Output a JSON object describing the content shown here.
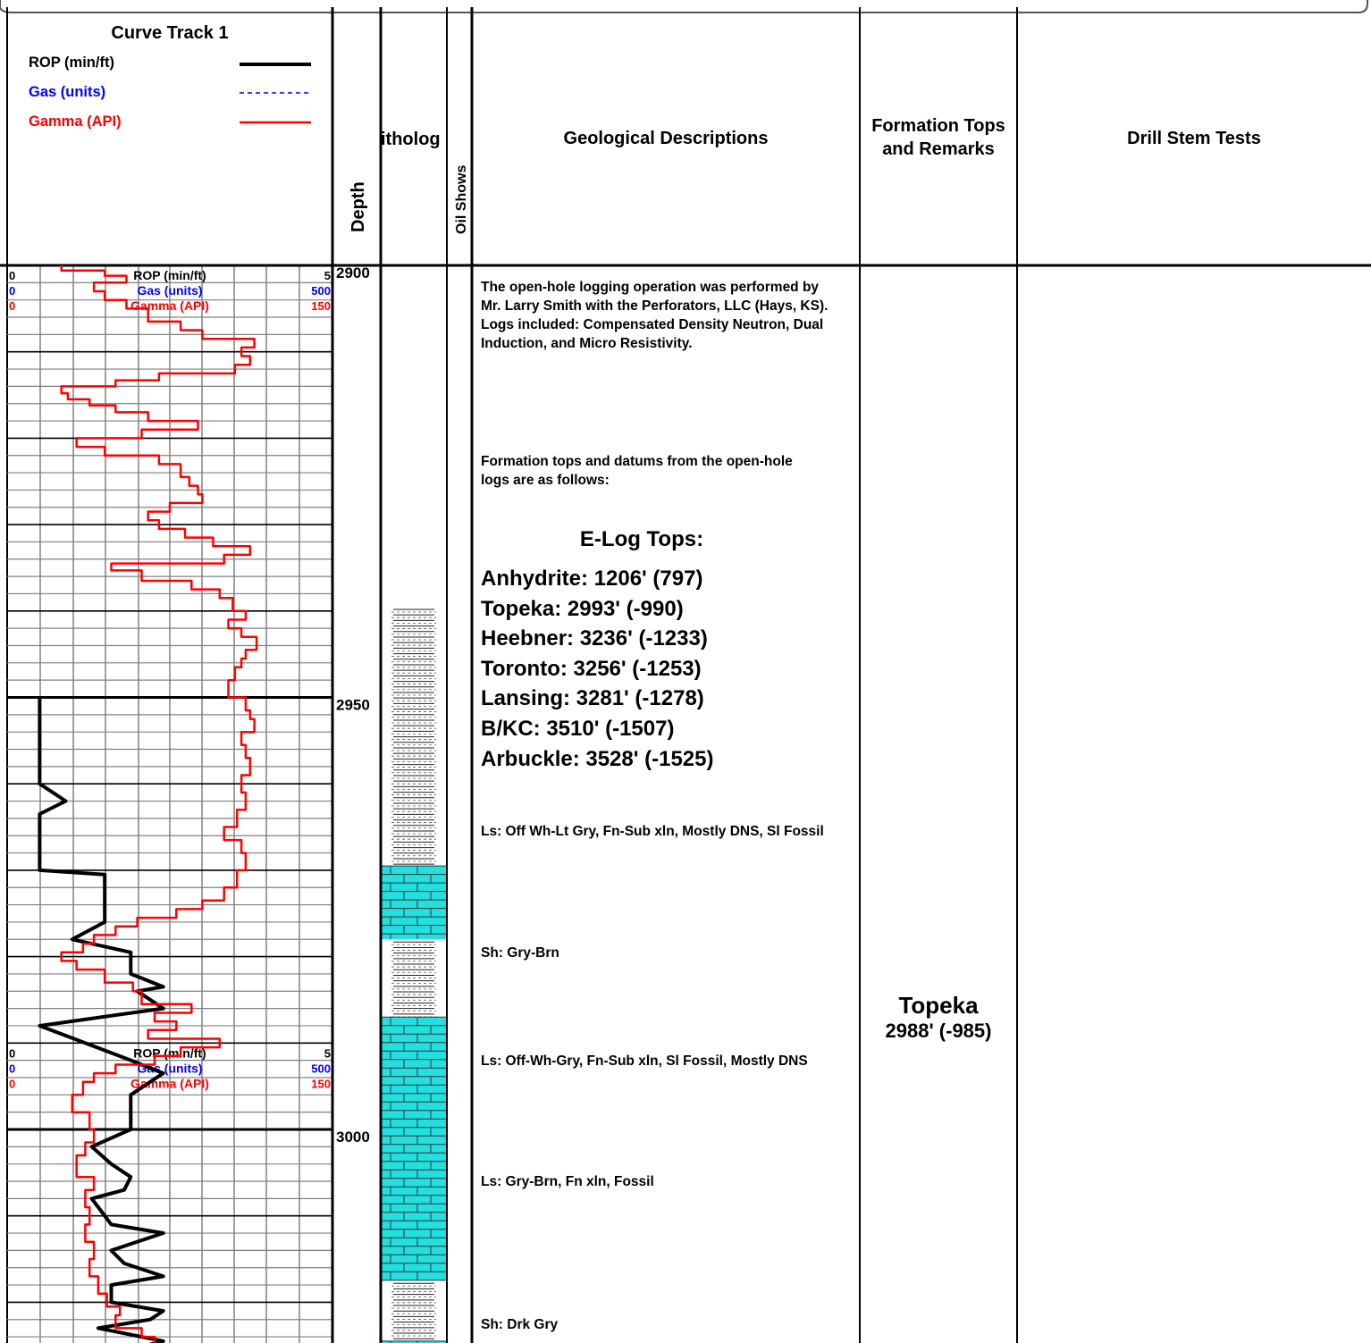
{
  "header": {
    "curve_track_title": "Curve Track 1",
    "legend": [
      {
        "label": "ROP (min/ft)",
        "color": "#000000",
        "style": "solid-thick"
      },
      {
        "label": "Gas (units)",
        "color": "#0000ff",
        "style": "dashed"
      },
      {
        "label": "Gamma (API)",
        "color": "#ff0000",
        "style": "solid"
      }
    ],
    "depth_label": "Depth",
    "lithology_label": "itholog",
    "oil_shows_label": "Oil Shows",
    "geo_desc_label": "Geological Descriptions",
    "formation_tops_label": "Formation Tops and Remarks",
    "drill_stem_label": "Drill Stem Tests"
  },
  "scales": [
    {
      "ROP": {
        "name": "ROP (min/ft)",
        "min": "0",
        "max": "5"
      },
      "Gas": {
        "name": "Gas (units)",
        "min": "0",
        "max": "500"
      },
      "Gamma": {
        "name": "Gamma (API)",
        "min": "0",
        "max": "150"
      }
    },
    {
      "ROP": {
        "name": "ROP (min/ft)",
        "min": "0",
        "max": "5"
      },
      "Gas": {
        "name": "Gas (units)",
        "min": "0",
        "max": "500"
      },
      "Gamma": {
        "name": "Gamma (API)",
        "min": "0",
        "max": "150"
      }
    }
  ],
  "depth_labels": [
    "2900",
    "2950",
    "3000"
  ],
  "descriptions": {
    "logging": "The open-hole logging operation was performed by Mr. Larry Smith with the Perforators, LLC (Hays, KS). Logs included: Compensated Density Neutron, Dual Induction, and Micro Resistivity.",
    "tops_intro": "Formation tops and datums from the open-hole logs are as follows:",
    "etops_title": "E-Log Tops:",
    "etops": [
      "Anhydrite: 1206' (797)",
      "Topeka: 2993' (-990)",
      "Heebner: 3236' (-1233)",
      "Toronto: 3256' (-1253)",
      "Lansing: 3281' (-1278)",
      "B/KC: 3510' (-1507)",
      "Arbuckle: 3528' (-1525)"
    ],
    "lith": [
      {
        "depth": 2965.5,
        "text": "Ls: Off Wh-Lt Gry, Fn-Sub xln, Mostly DNS, Sl Fossil"
      },
      {
        "depth": 2979.5,
        "text": "Sh: Gry-Brn"
      },
      {
        "depth": 2992.0,
        "text": "Ls: Off-Wh-Gry, Fn-Sub xln, Sl Fossil, Mostly DNS"
      },
      {
        "depth": 3006.0,
        "text": "Ls: Gry-Brn, Fn xln, Fossil"
      },
      {
        "depth": 3022.5,
        "text": "Sh: Drk Gry"
      }
    ]
  },
  "formation_tops": [
    {
      "depth": 2985.5,
      "name": "Topeka",
      "datum": "2988' (-985)"
    }
  ],
  "colors": {
    "limestone": "#22e0e0",
    "gamma": "#ff0000",
    "rop": "#000000",
    "gas": "#0000ff",
    "grid": "#808080"
  },
  "chart_data": {
    "type": "line",
    "title": "Curve Track 1",
    "ylabel": "Depth",
    "depth_range": [
      2900,
      3026
    ],
    "series": [
      {
        "name": "ROP (min/ft)",
        "scale": [
          0,
          5
        ],
        "points": [
          [
            2950,
            0.5
          ],
          [
            2960,
            0.5
          ],
          [
            2962,
            0.9
          ],
          [
            2963.5,
            0.5
          ],
          [
            2970,
            0.5
          ],
          [
            2970.5,
            1.5
          ],
          [
            2976,
            1.5
          ],
          [
            2978,
            1.0
          ],
          [
            2979.5,
            1.9
          ],
          [
            2980.5,
            1.9
          ],
          [
            2982,
            1.9
          ],
          [
            2983.5,
            2.4
          ],
          [
            2984,
            2.0
          ],
          [
            2986,
            2.4
          ],
          [
            2988,
            0.5
          ],
          [
            2992,
            1.9
          ],
          [
            2993.5,
            2.4
          ],
          [
            2996,
            1.9
          ],
          [
            3000,
            1.9
          ],
          [
            3002,
            1.3
          ],
          [
            3004,
            1.6
          ],
          [
            3005.5,
            1.9
          ],
          [
            3007,
            1.8
          ],
          [
            3008,
            1.3
          ],
          [
            3009,
            1.4
          ],
          [
            3011,
            1.6
          ],
          [
            3012,
            2.4
          ],
          [
            3014,
            1.6
          ],
          [
            3015.5,
            1.8
          ],
          [
            3017,
            2.4
          ],
          [
            3018,
            1.6
          ],
          [
            3020,
            1.6
          ],
          [
            3021,
            2.4
          ],
          [
            3022,
            2.2
          ],
          [
            3023,
            1.4
          ],
          [
            3024.5,
            2.4
          ],
          [
            3026,
            1.6
          ]
        ]
      },
      {
        "name": "Gamma (API)",
        "scale": [
          0,
          150
        ],
        "points": [
          [
            2900,
            25
          ],
          [
            2900.6,
            25
          ],
          [
            2900.6,
            45
          ],
          [
            2901.2,
            45
          ],
          [
            2901.2,
            55
          ],
          [
            2902.0,
            55
          ],
          [
            2902.0,
            40
          ],
          [
            2903.0,
            40
          ],
          [
            2903.0,
            45
          ],
          [
            2904.0,
            45
          ],
          [
            2904.0,
            55
          ],
          [
            2905.0,
            55
          ],
          [
            2905.0,
            65
          ],
          [
            2906.5,
            65
          ],
          [
            2906.5,
            80
          ],
          [
            2907.5,
            80
          ],
          [
            2907.5,
            90
          ],
          [
            2908.5,
            90
          ],
          [
            2908.5,
            114
          ],
          [
            2909.5,
            114
          ],
          [
            2909.5,
            108
          ],
          [
            2910.5,
            108
          ],
          [
            2910.5,
            112
          ],
          [
            2911.5,
            112
          ],
          [
            2911.5,
            105
          ],
          [
            2912.5,
            105
          ],
          [
            2912.5,
            70
          ],
          [
            2913.3,
            70
          ],
          [
            2913.3,
            50
          ],
          [
            2914.0,
            50
          ],
          [
            2914.0,
            25
          ],
          [
            2914.8,
            25
          ],
          [
            2914.8,
            28
          ],
          [
            2915.5,
            28
          ],
          [
            2915.5,
            38
          ],
          [
            2916.2,
            38
          ],
          [
            2916.2,
            50
          ],
          [
            2917.0,
            50
          ],
          [
            2917.0,
            65
          ],
          [
            2918.0,
            65
          ],
          [
            2918.0,
            88
          ],
          [
            2919.0,
            88
          ],
          [
            2919.0,
            62
          ],
          [
            2920.0,
            62
          ],
          [
            2920.0,
            32
          ],
          [
            2921.0,
            32
          ],
          [
            2921.0,
            45
          ],
          [
            2922.0,
            45
          ],
          [
            2922.0,
            70
          ],
          [
            2923.0,
            70
          ],
          [
            2923.0,
            80
          ],
          [
            2924.5,
            80
          ],
          [
            2924.5,
            84
          ],
          [
            2925.5,
            84
          ],
          [
            2925.5,
            88
          ],
          [
            2926.5,
            88
          ],
          [
            2926.5,
            90
          ],
          [
            2927.5,
            90
          ],
          [
            2927.5,
            75
          ],
          [
            2928.5,
            75
          ],
          [
            2928.5,
            65
          ],
          [
            2929.5,
            65
          ],
          [
            2929.5,
            70
          ],
          [
            2930.5,
            70
          ],
          [
            2930.5,
            82
          ],
          [
            2931.5,
            82
          ],
          [
            2931.5,
            95
          ],
          [
            2932.5,
            95
          ],
          [
            2932.5,
            112
          ],
          [
            2933.5,
            112
          ],
          [
            2933.5,
            100
          ],
          [
            2934.5,
            100
          ],
          [
            2934.5,
            48
          ],
          [
            2935.3,
            48
          ],
          [
            2935.3,
            62
          ],
          [
            2936.5,
            62
          ],
          [
            2936.5,
            85
          ],
          [
            2937.5,
            85
          ],
          [
            2937.5,
            98
          ],
          [
            2938.5,
            98
          ],
          [
            2938.5,
            104
          ],
          [
            2940.0,
            104
          ],
          [
            2940.0,
            110
          ],
          [
            2941.0,
            110
          ],
          [
            2941.0,
            102
          ],
          [
            2942.0,
            102
          ],
          [
            2942.0,
            108
          ],
          [
            2943.0,
            108
          ],
          [
            2943.0,
            115
          ],
          [
            2944.5,
            115
          ],
          [
            2944.5,
            110
          ],
          [
            2945.5,
            110
          ],
          [
            2945.5,
            108
          ],
          [
            2946.5,
            108
          ],
          [
            2946.5,
            105
          ],
          [
            2948.0,
            105
          ],
          [
            2948.0,
            102
          ],
          [
            2950.0,
            102
          ],
          [
            2950.0,
            110
          ],
          [
            2951.5,
            110
          ],
          [
            2951.5,
            112
          ],
          [
            2952.5,
            112
          ],
          [
            2952.5,
            114
          ],
          [
            2954.0,
            114
          ],
          [
            2954.0,
            108
          ],
          [
            2955.5,
            108
          ],
          [
            2955.5,
            110
          ],
          [
            2957.0,
            110
          ],
          [
            2957.0,
            112
          ],
          [
            2959.0,
            112
          ],
          [
            2959.0,
            108
          ],
          [
            2961.0,
            108
          ],
          [
            2961.0,
            110
          ],
          [
            2963.0,
            110
          ],
          [
            2963.0,
            106
          ],
          [
            2965.0,
            106
          ],
          [
            2965.0,
            100
          ],
          [
            2966.5,
            100
          ],
          [
            2966.5,
            108
          ],
          [
            2968.0,
            108
          ],
          [
            2968.0,
            110
          ],
          [
            2970.0,
            110
          ],
          [
            2970.0,
            106
          ],
          [
            2972.0,
            106
          ],
          [
            2972.0,
            100
          ],
          [
            2973.5,
            100
          ],
          [
            2973.5,
            90
          ],
          [
            2974.5,
            90
          ],
          [
            2974.5,
            78
          ],
          [
            2975.5,
            78
          ],
          [
            2975.5,
            60
          ],
          [
            2976.5,
            60
          ],
          [
            2976.5,
            50
          ],
          [
            2977.5,
            50
          ],
          [
            2977.5,
            40
          ],
          [
            2978.5,
            40
          ],
          [
            2978.5,
            35
          ],
          [
            2979.5,
            35
          ],
          [
            2979.5,
            25
          ],
          [
            2980.5,
            25
          ],
          [
            2980.5,
            32
          ],
          [
            2981.5,
            32
          ],
          [
            2981.5,
            45
          ],
          [
            2983.0,
            45
          ],
          [
            2983.0,
            58
          ],
          [
            2984.0,
            58
          ],
          [
            2984.0,
            62
          ],
          [
            2985.5,
            62
          ],
          [
            2985.5,
            85
          ],
          [
            2986.5,
            85
          ],
          [
            2986.5,
            68
          ],
          [
            2987.5,
            68
          ],
          [
            2987.5,
            78
          ],
          [
            2988.5,
            78
          ],
          [
            2988.5,
            65
          ],
          [
            2989.5,
            65
          ],
          [
            2989.5,
            98
          ],
          [
            2990.5,
            98
          ],
          [
            2990.5,
            80
          ],
          [
            2991.5,
            80
          ],
          [
            2991.5,
            68
          ],
          [
            2992.5,
            68
          ],
          [
            2992.5,
            50
          ],
          [
            2993.5,
            50
          ],
          [
            2993.5,
            40
          ],
          [
            2994.5,
            40
          ],
          [
            2994.5,
            35
          ],
          [
            2996.0,
            35
          ],
          [
            2996.0,
            30
          ],
          [
            2998.0,
            30
          ],
          [
            2998.0,
            38
          ],
          [
            3000.0,
            38
          ],
          [
            3000.0,
            40
          ],
          [
            3001.5,
            40
          ],
          [
            3001.5,
            36
          ],
          [
            3003.0,
            36
          ],
          [
            3003.0,
            32
          ],
          [
            3005.5,
            32
          ],
          [
            3005.5,
            40
          ],
          [
            3007.0,
            40
          ],
          [
            3007.0,
            36
          ],
          [
            3009.0,
            36
          ],
          [
            3009.0,
            38
          ],
          [
            3011.0,
            38
          ],
          [
            3011.0,
            36
          ],
          [
            3013.0,
            36
          ],
          [
            3013.0,
            40
          ],
          [
            3015.0,
            40
          ],
          [
            3015.0,
            38
          ],
          [
            3017.0,
            38
          ],
          [
            3017.0,
            42
          ],
          [
            3019.0,
            42
          ],
          [
            3019.0,
            46
          ],
          [
            3020.5,
            46
          ],
          [
            3020.5,
            52
          ],
          [
            3021.5,
            52
          ],
          [
            3021.5,
            50
          ],
          [
            3023.0,
            50
          ],
          [
            3023.0,
            62
          ],
          [
            3024.0,
            62
          ],
          [
            3024.0,
            68
          ],
          [
            3025.0,
            68
          ],
          [
            3025.0,
            55
          ],
          [
            3026,
            55
          ]
        ]
      },
      {
        "name": "Gas (units)",
        "scale": [
          0,
          500
        ],
        "points": []
      }
    ],
    "lithology": [
      {
        "from": 2939.5,
        "to": 2969.5,
        "type": "shale"
      },
      {
        "from": 2969.5,
        "to": 2978.0,
        "type": "limestone"
      },
      {
        "from": 2978.0,
        "to": 2987.0,
        "type": "shale"
      },
      {
        "from": 2987.0,
        "to": 3017.5,
        "type": "limestone"
      },
      {
        "from": 3017.5,
        "to": 3024.5,
        "type": "shale"
      },
      {
        "from": 3024.5,
        "to": 3026.0,
        "type": "limestone"
      }
    ]
  }
}
